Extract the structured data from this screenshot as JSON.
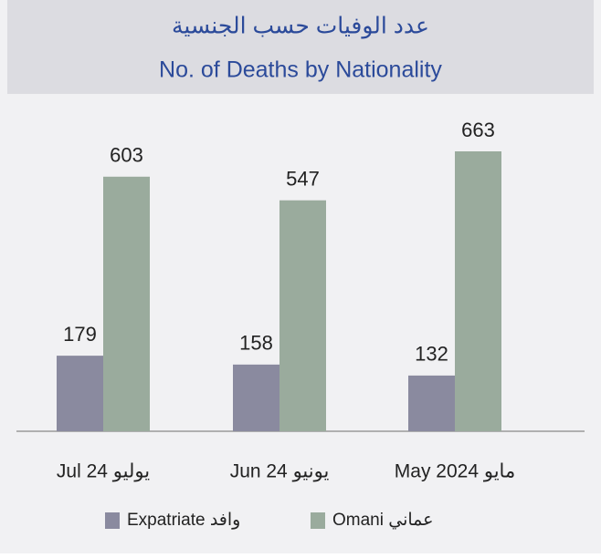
{
  "chart_data": {
    "type": "bar",
    "title": "عدد الوفيات حسب الجنسية",
    "subtitle": "No. of Deaths by Nationality",
    "categories": [
      "Jul 24 يوليو",
      "Jun 24 يونيو",
      "May 2024 مايو"
    ],
    "series": [
      {
        "name": "Expatriate وافد",
        "color": "#8a8a9f",
        "values": [
          179,
          158,
          132
        ]
      },
      {
        "name": "Omani عماني",
        "color": "#9aab9d",
        "values": [
          603,
          547,
          663
        ]
      }
    ],
    "legend": "bottom"
  }
}
